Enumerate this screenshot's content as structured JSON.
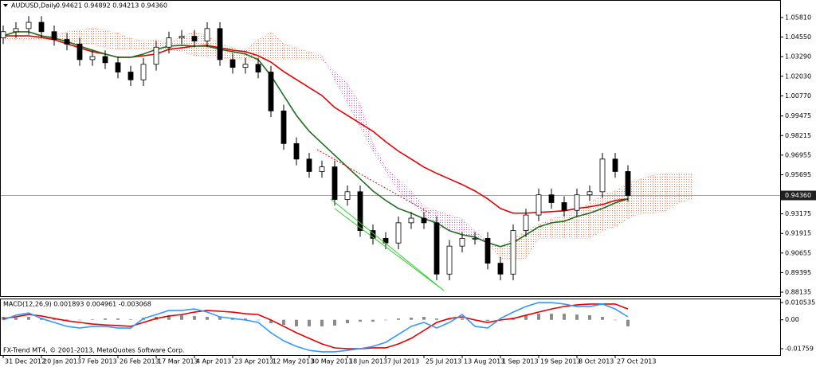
{
  "chart_data": [
    {
      "type": "candlestick",
      "title": "AUDUSD,Daily",
      "ohlc_text": "0.94621 0.94892 0.94213 0.94360",
      "categories": [
        null,
        "31 Dec 2012",
        null,
        null,
        "20 Jan 2013",
        null,
        null,
        "7 Feb 2013",
        null,
        null,
        "26 Feb 2013",
        null,
        null,
        "17 Mar 2013",
        null,
        null,
        "4 Apr 2013",
        null,
        null,
        "23 Apr 2013",
        null,
        null,
        "12 May 2013",
        null,
        null,
        "30 May 2013",
        null,
        null,
        "18 Jun 2013",
        null,
        null,
        "7 Jul 2013",
        null,
        null,
        "25 Jul 2013",
        null,
        null,
        "13 Aug 2013",
        null,
        null,
        "1 Sep 2013",
        null,
        null,
        "19 Sep 2013",
        null,
        null,
        "8 Oct 2013",
        null,
        null,
        "27 Oct 2013"
      ],
      "open": [
        1.045,
        1.049,
        1.051,
        1.055,
        1.049,
        1.044,
        1.041,
        1.031,
        1.033,
        1.029,
        1.023,
        1.018,
        1.028,
        1.039,
        1.045,
        1.046,
        1.043,
        1.051,
        1.031,
        1.026,
        1.028,
        1.023,
        0.998,
        0.977,
        0.967,
        0.959,
        0.962,
        0.941,
        0.946,
        0.921,
        0.916,
        0.913,
        0.926,
        0.929,
        0.926,
        0.893,
        0.911,
        0.916,
        0.916,
        0.9,
        0.893,
        0.921,
        0.931,
        0.944,
        0.939,
        0.934,
        0.944,
        0.946,
        0.967,
        0.959
      ],
      "high": [
        1.053,
        1.055,
        1.059,
        1.059,
        1.053,
        1.048,
        1.045,
        1.037,
        1.037,
        1.033,
        1.027,
        1.032,
        1.043,
        1.049,
        1.05,
        1.05,
        1.055,
        1.055,
        1.035,
        1.032,
        1.032,
        1.027,
        1.002,
        0.981,
        0.971,
        0.966,
        0.966,
        0.95,
        0.95,
        0.925,
        0.92,
        0.93,
        0.933,
        0.933,
        0.93,
        0.915,
        0.92,
        0.92,
        0.92,
        0.904,
        0.925,
        0.935,
        0.948,
        0.948,
        0.943,
        0.948,
        0.95,
        0.971,
        0.971,
        0.963
      ],
      "low": [
        1.041,
        1.045,
        1.047,
        1.045,
        1.04,
        1.037,
        1.027,
        1.027,
        1.025,
        1.019,
        1.014,
        1.014,
        1.024,
        1.035,
        1.041,
        1.039,
        1.039,
        1.027,
        1.022,
        1.022,
        1.019,
        0.994,
        0.973,
        0.963,
        0.955,
        0.955,
        0.937,
        0.937,
        0.917,
        0.912,
        0.909,
        0.909,
        0.922,
        0.922,
        0.889,
        0.889,
        0.907,
        0.912,
        0.896,
        0.889,
        0.889,
        0.917,
        0.927,
        0.935,
        0.93,
        0.93,
        0.94,
        0.942,
        0.955,
        0.9396
      ],
      "close": [
        1.049,
        1.051,
        1.055,
        1.049,
        1.044,
        1.041,
        1.031,
        1.033,
        1.029,
        1.023,
        1.018,
        1.028,
        1.039,
        1.045,
        1.046,
        1.043,
        1.051,
        1.031,
        1.026,
        1.028,
        1.023,
        0.998,
        0.977,
        0.967,
        0.959,
        0.962,
        0.941,
        0.946,
        0.921,
        0.916,
        0.913,
        0.926,
        0.929,
        0.926,
        0.893,
        0.911,
        0.916,
        0.916,
        0.9,
        0.893,
        0.921,
        0.931,
        0.944,
        0.939,
        0.934,
        0.944,
        0.946,
        0.967,
        0.959,
        0.9436
      ],
      "up_color": "#ffffff",
      "down_color": "#000000",
      "series": [
        {
          "color": "#e60000",
          "values": [
            1.0463,
            1.0463,
            1.0463,
            1.0453,
            1.0438,
            1.0412,
            1.0386,
            1.0361,
            1.0346,
            1.0325,
            1.0325,
            1.0335,
            1.0346,
            1.0376,
            1.0386,
            1.0397,
            1.0402,
            1.0386,
            1.0371,
            1.0361,
            1.0335,
            1.0294,
            1.0233,
            1.0182,
            1.013,
            1.0079,
            1.0002,
            0.9951,
            0.99,
            0.9849,
            0.9782,
            0.9721,
            0.967,
            0.9618,
            0.9578,
            0.9542,
            0.9506,
            0.9465,
            0.9414,
            0.9352,
            0.9322,
            0.9322,
            0.9327,
            0.9332,
            0.9337,
            0.9352,
            0.9363,
            0.9378,
            0.9404,
            0.9414
          ]
        },
        {
          "color": "#1f6e1f",
          "values": [
            1.0463,
            1.0489,
            1.0489,
            1.0463,
            1.0448,
            1.0427,
            1.0397,
            1.0371,
            1.0346,
            1.0325,
            1.0325,
            1.0346,
            1.0376,
            1.0397,
            1.0402,
            1.0397,
            1.0397,
            1.0376,
            1.0361,
            1.0346,
            1.031,
            1.0207,
            1.0079,
            0.9951,
            0.9849,
            0.9772,
            0.9695,
            0.9618,
            0.9542,
            0.9465,
            0.9404,
            0.9352,
            0.9322,
            0.9286,
            0.926,
            0.9209,
            0.9183,
            0.9168,
            0.9132,
            0.9107,
            0.9132,
            0.9183,
            0.9234,
            0.926,
            0.927,
            0.9301,
            0.9322,
            0.9352,
            0.9388,
            0.9414
          ]
        }
      ],
      "cloud": {
        "span_a": [
          1.0463,
          1.0463,
          1.0463,
          1.0463,
          1.0463,
          1.0489,
          1.0499,
          1.0515,
          1.0499,
          1.0479,
          1.0448,
          1.0427,
          1.0438,
          1.0412,
          1.0463,
          1.0489,
          1.0463,
          1.0412,
          1.0386,
          1.0376,
          1.0438,
          1.0489,
          1.0412,
          1.0386,
          1.0361,
          1.0335,
          1.0182,
          1.0028,
          0.9875,
          0.9721,
          0.9593,
          0.9465,
          0.9388,
          0.9311,
          0.9234,
          0.9209,
          0.9183,
          0.9158,
          0.9132,
          0.9107,
          0.9158,
          0.9209,
          0.925,
          0.9286,
          0.9311,
          0.9337,
          0.9388,
          0.9439,
          0.9465,
          0.9516,
          0.9542,
          0.9567,
          0.9578,
          0.9578,
          0.9578
        ],
        "span_b": [
          1.0438,
          1.0438,
          1.0438,
          1.0438,
          1.0438,
          1.0412,
          1.0412,
          1.0412,
          1.0386,
          1.0376,
          1.0376,
          1.0376,
          1.0376,
          1.0376,
          1.0361,
          1.0335,
          1.0325,
          1.0325,
          1.031,
          1.031,
          1.031,
          1.031,
          1.031,
          1.031,
          1.031,
          1.031,
          1.0233,
          1.0156,
          1.0028,
          0.9772,
          0.9618,
          0.9542,
          0.9465,
          0.9363,
          0.9337,
          0.9311,
          0.9286,
          0.9209,
          0.9132,
          0.903,
          0.903,
          0.903,
          0.9158,
          0.9158,
          0.9158,
          0.9158,
          0.9158,
          0.9209,
          0.9234,
          0.9286,
          0.9322,
          0.9322,
          0.9337,
          0.9388,
          0.9414
        ],
        "colors": [
          "#f07850",
          "#cc55cc"
        ]
      },
      "current_price": {
        "value": 0.9436,
        "label": "0.94360"
      },
      "ylim": [
        0.8788,
        1.0622
      ],
      "yticks": [
        {
          "value": 1.0581,
          "label": "1.05810"
        },
        {
          "value": 1.0455,
          "label": "1.04550"
        },
        {
          "value": 1.0329,
          "label": "1.03290"
        },
        {
          "value": 1.0203,
          "label": "1.02030"
        },
        {
          "value": 1.0077,
          "label": "1.00770"
        },
        {
          "value": 0.99475,
          "label": "0.99475"
        },
        {
          "value": 0.98215,
          "label": "0.98215"
        },
        {
          "value": 0.96955,
          "label": "0.96955"
        },
        {
          "value": 0.95695,
          "label": "0.95695"
        },
        {
          "value": 0.93175,
          "label": "0.93175"
        },
        {
          "value": 0.91915,
          "label": "0.91915"
        },
        {
          "value": 0.90655,
          "label": "0.90655"
        },
        {
          "value": 0.89395,
          "label": "0.89395"
        },
        {
          "value": 0.88135,
          "label": "0.88135"
        }
      ]
    },
    {
      "type": "macd",
      "title": "MACD(12,26,9) 0.001893 0.004961 -0.003068",
      "annotation": "FX-Trend MT4, © 2001-2013, MetaQuotes Software Corp.",
      "values": [
        0.0018,
        0.0013,
        0.0018,
        0.0013,
        0.0008,
        0.0003,
        -0.0001,
        0.0003,
        0.0008,
        0.0008,
        0.0003,
        0.0013,
        0.0018,
        0.0028,
        0.0028,
        0.0023,
        0.0018,
        0.0018,
        0.0013,
        0.0008,
        -0.0001,
        -0.0021,
        -0.0031,
        -0.004,
        -0.004,
        -0.004,
        -0.0035,
        -0.0021,
        -0.0011,
        -0.0011,
        -0.0001,
        0.0008,
        0.0013,
        0.0018,
        0.0008,
        0.0003,
        0.0008,
        -0.0001,
        -0.0006,
        -0.0001,
        0.0013,
        0.0028,
        0.0037,
        0.0037,
        0.0037,
        0.0032,
        0.0028,
        0.0018,
        -0.0001,
        -0.004
      ],
      "color": "#8c8c8c",
      "series": [
        {
          "color": "#e60000",
          "values": [
            0.0008,
            0.0018,
            0.0032,
            0.0023,
            0.0008,
            -0.0006,
            -0.0016,
            -0.0026,
            -0.0031,
            -0.0035,
            -0.004,
            -0.0016,
            0.0008,
            0.0023,
            0.0032,
            0.0047,
            0.0057,
            0.0052,
            0.0047,
            0.0037,
            0.0032,
            -0.0001,
            -0.004,
            -0.0079,
            -0.0113,
            -0.0147,
            -0.0171,
            -0.0176,
            -0.0176,
            -0.0171,
            -0.0171,
            -0.0147,
            -0.0113,
            -0.0065,
            -0.0016,
            0.0008,
            0.0018,
            -0.0001,
            -0.0016,
            -0.0001,
            0.0008,
            0.0028,
            0.0047,
            0.0066,
            0.0081,
            0.0091,
            0.0096,
            0.0096,
            0.0096,
            0.0066
          ]
        },
        {
          "color": "#3399ff",
          "values": [
            -0.0001,
            0.0028,
            0.0042,
            0.0008,
            -0.0016,
            -0.004,
            -0.005,
            -0.004,
            -0.004,
            -0.005,
            -0.005,
            0.0008,
            0.0032,
            0.0057,
            0.0057,
            0.0066,
            0.0047,
            0.0018,
            0.0008,
            -0.0001,
            -0.0016,
            -0.0079,
            -0.0128,
            -0.0162,
            -0.0186,
            -0.0195,
            -0.0195,
            -0.0186,
            -0.0176,
            -0.0162,
            -0.0137,
            -0.0089,
            -0.004,
            -0.0016,
            -0.005,
            -0.0016,
            0.0032,
            -0.004,
            -0.005,
            0.0008,
            0.0047,
            0.0081,
            0.0105,
            0.0105,
            0.0096,
            0.0081,
            0.0081,
            0.0096,
            0.0066,
            0.0018
          ]
        }
      ],
      "ylim": [
        -0.02147,
        0.01247
      ],
      "yticks": [
        0.010535,
        {
          "value": 0,
          "label": "0.00"
        },
        -0.01759
      ]
    }
  ]
}
